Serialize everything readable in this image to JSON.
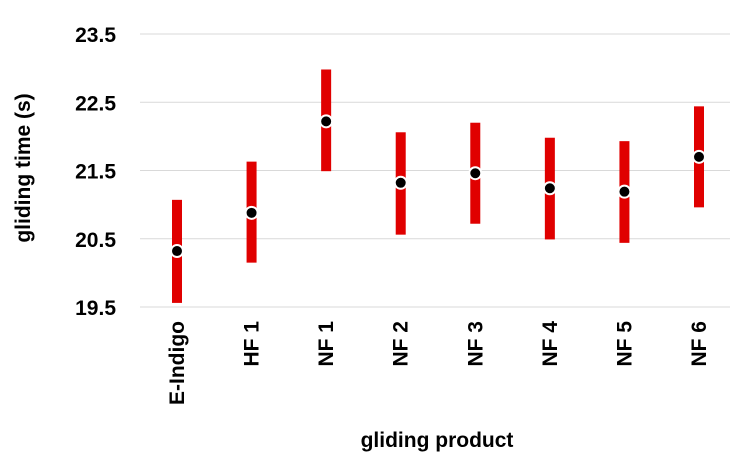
{
  "chart_data": {
    "type": "errorbar",
    "title": "",
    "xlabel": "gliding product",
    "ylabel": "gliding time (s)",
    "ylim": [
      19.5,
      23.5
    ],
    "y_ticks": [
      "19.5",
      "20.5",
      "21.5",
      "22.5",
      "23.5"
    ],
    "y_tick_values": [
      19.5,
      20.5,
      21.5,
      22.5,
      23.5
    ],
    "grid": "horizontal",
    "categories": [
      "E-Indigo",
      "HF 1",
      "NF 1",
      "NF 2",
      "NF 3",
      "NF 4",
      "NF 5",
      "NF 6"
    ],
    "means": [
      20.32,
      20.88,
      22.22,
      21.32,
      21.46,
      21.24,
      21.19,
      21.7
    ],
    "lower": [
      19.56,
      20.15,
      21.49,
      20.56,
      20.72,
      20.49,
      20.44,
      20.96
    ],
    "upper": [
      21.07,
      21.63,
      22.98,
      22.06,
      22.2,
      21.98,
      21.93,
      22.44
    ],
    "colors": {
      "bar": "#e00000",
      "marker": "#000000",
      "grid": "#d9d9d9",
      "axis_text": "#000000"
    }
  }
}
